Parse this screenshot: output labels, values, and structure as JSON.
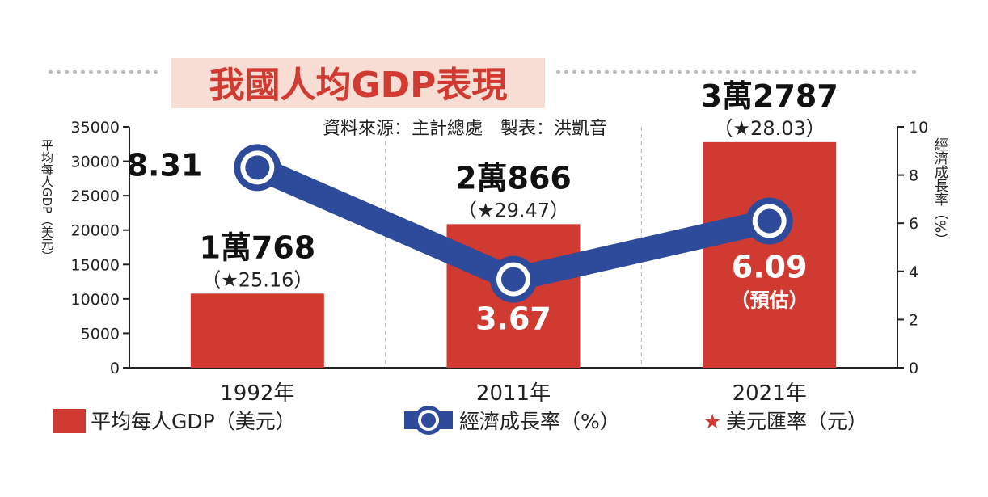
{
  "chart_data": {
    "type": "bar",
    "title": "我國人均GDP表現",
    "source_note": "資料來源：主計總處　製表：洪凱音",
    "categories": [
      "1992年",
      "2011年",
      "2021年"
    ],
    "series": [
      {
        "name": "平均每人GDP（美元）",
        "type": "bar",
        "axis": "left",
        "values": [
          10768,
          20866,
          32787
        ],
        "labels": [
          "1萬768",
          "2萬866",
          "3萬2787"
        ],
        "color": "#d13a30"
      },
      {
        "name": "經濟成長率（%）",
        "type": "line",
        "axis": "right",
        "values": [
          8.31,
          3.67,
          6.09
        ],
        "labels": [
          "8.31",
          "3.67",
          "6.09"
        ],
        "color": "#2e4a9a"
      },
      {
        "name": "美元匯率（元）",
        "type": "annotation",
        "values": [
          25.16,
          29.47,
          28.03
        ],
        "labels": [
          "（★25.16）",
          "（★29.47）",
          "（★28.03）"
        ],
        "marker_color": "#d13a30"
      }
    ],
    "extra_annotations": [
      "（預估）"
    ],
    "ylabel_left": "平均每人GDP（美元）",
    "ylabel_right": "經濟成長率（%）",
    "ylim_left": [
      0,
      35000
    ],
    "ylim_right": [
      0,
      10
    ],
    "yticks_left": [
      "0",
      "5000",
      "10000",
      "15000",
      "20000",
      "25000",
      "30000",
      "35000"
    ],
    "yticks_right": [
      "0",
      "2",
      "4",
      "6",
      "8",
      "10"
    ],
    "grid": false,
    "legend": {
      "position": "bottom",
      "items": [
        "平均每人GDP（美元）",
        "經濟成長率（%）",
        "美元匯率（元）"
      ]
    }
  }
}
